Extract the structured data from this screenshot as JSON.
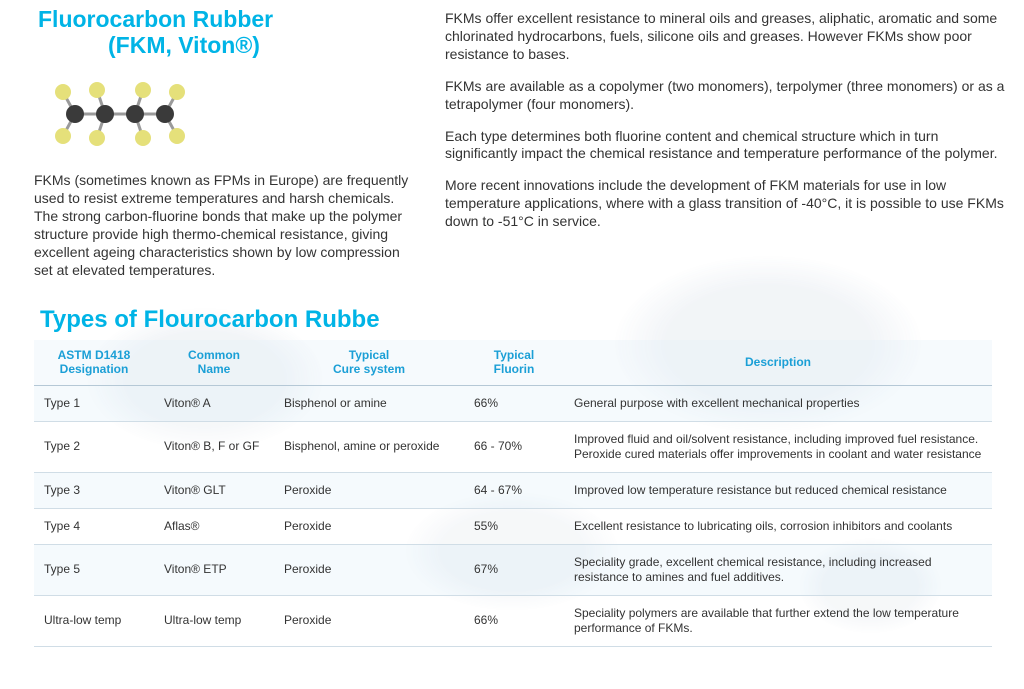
{
  "header": {
    "line1": "Fluorocarbon Rubber",
    "line2": "(FKM, Viton®)"
  },
  "left_para": "FKMs (sometimes known as FPMs in Europe) are frequently used to resist extreme temperatures and harsh chemicals. The strong carbon-fluorine bonds that make up the polymer structure provide high thermo-chemical resistance, giving excellent ageing characteristics shown by low compression set at elevated temperatures.",
  "right_paras": [
    "FKMs offer excellent resistance to mineral oils and greases, aliphatic, aromatic and some chlorinated hydrocarbons, fuels, silicone oils and greases. However FKMs show poor resistance to bases.",
    "FKMs are available as a copolymer (two monomers), terpolymer (three monomers) or as a tetrapolymer (four monomers).",
    "Each type determines both fluorine content and chemical structure which in turn significantly impact the chemical resistance and temperature performance of the polymer.",
    "More recent innovations include the development of FKM materials for use in low temperature applications, where with a glass transition of -40°C, it is possible to use FKMs down to -51°C in service."
  ],
  "subhead": "Types of Flourocarbon Rubbe",
  "table": {
    "columns": [
      {
        "l1": "ASTM D1418",
        "l2": "Designation",
        "w": "c0"
      },
      {
        "l1": "Common",
        "l2": "Name",
        "w": "c1"
      },
      {
        "l1": "Typical",
        "l2": "Cure system",
        "w": "c2"
      },
      {
        "l1": "Typical",
        "l2": "Fluorin",
        "w": "c3"
      },
      {
        "l1": "Description",
        "l2": "",
        "w": "c4"
      }
    ],
    "rows": [
      [
        "Type 1",
        "Viton® A",
        "Bisphenol or amine",
        "66%",
        "General purpose with excellent mechanical properties"
      ],
      [
        "Type 2",
        "Viton® B, F or GF",
        "Bisphenol, amine or peroxide",
        "66 - 70%",
        "Improved fluid and oil/solvent resistance, including improved fuel resistance. Peroxide cured materials offer improvements in coolant and water resistance"
      ],
      [
        "Type 3",
        "Viton® GLT",
        "Peroxide",
        "64 - 67%",
        "Improved low temperature resistance but reduced chemical resistance"
      ],
      [
        "Type 4",
        "Aflas®",
        "Peroxide",
        "55%",
        "Excellent resistance to lubricating oils, corrosion inhibitors and coolants"
      ],
      [
        "Type 5",
        "Viton® ETP",
        "Peroxide",
        "67%",
        "Speciality grade, excellent chemical resistance, including increased resistance to amines and fuel additives."
      ],
      [
        "Ultra-low temp",
        "Ultra-low temp",
        "Peroxide",
        "66%",
        "Speciality polymers are available that further extend the low temperature performance of FKMs."
      ]
    ]
  },
  "molecule": {
    "atom_main": "#3a3a3a",
    "atom_f": "#e5e07a",
    "bond": "#9a9a9a"
  }
}
